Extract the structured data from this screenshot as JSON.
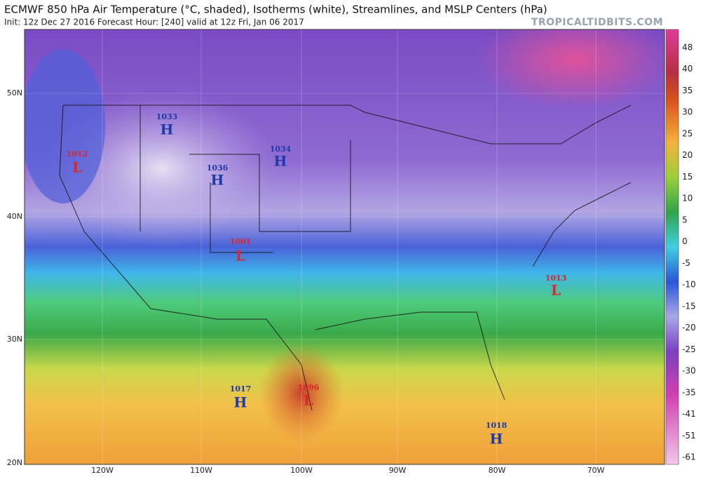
{
  "header": {
    "title": "ECMWF 850 hPa Air Temperature (°C, shaded), Isotherms (white), Streamlines, and MSLP Centers (hPa)",
    "subtitle": "Init: 12z Dec 27 2016   Forecast Hour: [240]   valid at 12z Fri, Jan 06 2017",
    "watermark": "TROPICALTIDBITS.COM"
  },
  "colorbar": {
    "labels": [
      48,
      40,
      35,
      30,
      25,
      20,
      15,
      10,
      5,
      0,
      -5,
      -10,
      -15,
      -20,
      -25,
      -30,
      -35,
      -41,
      -51,
      -61
    ]
  },
  "axes": {
    "lat": [
      "50N",
      "40N",
      "30N",
      "20N"
    ],
    "lon": [
      "120W",
      "110W",
      "100W",
      "90W",
      "80W",
      "70W"
    ]
  },
  "centers": [
    {
      "pressure": "1012",
      "symbol": "L"
    },
    {
      "pressure": "1033",
      "symbol": "H"
    },
    {
      "pressure": "1036",
      "symbol": "H"
    },
    {
      "pressure": "1034",
      "symbol": "H"
    },
    {
      "pressure": "1001",
      "symbol": "L"
    },
    {
      "pressure": "1013",
      "symbol": "L"
    },
    {
      "pressure": "1017",
      "symbol": "H"
    },
    {
      "pressure": "1096",
      "symbol": "L"
    },
    {
      "pressure": "1018",
      "symbol": "H"
    }
  ]
}
